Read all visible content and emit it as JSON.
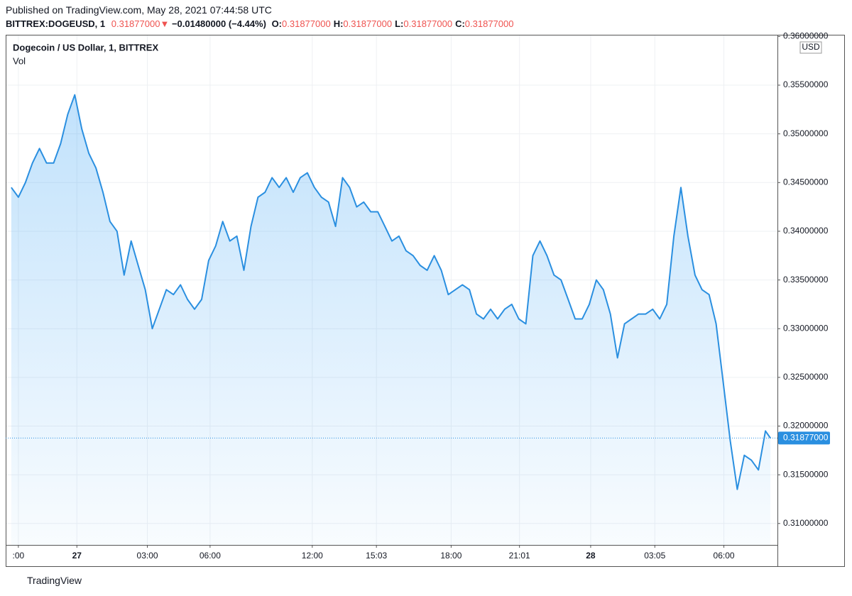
{
  "header": {
    "published": "Published on TradingView.com, May 28, 2021 07:44:58 UTC",
    "symbol": "BITTREX:DOGEUSD, 1",
    "last": "0.31877000",
    "arrow": "▼",
    "change": "−0.01480000 (−4.44%)",
    "ohlc": [
      {
        "label": "O:",
        "value": "0.31877000"
      },
      {
        "label": "H:",
        "value": "0.31877000"
      },
      {
        "label": "L:",
        "value": "0.31877000"
      },
      {
        "label": "C:",
        "value": "0.31877000"
      }
    ]
  },
  "footer": "TradingView",
  "chart_data": {
    "type": "area",
    "title": "Dogecoin / US Dollar, 1, BITTREX",
    "subtitle": "Vol",
    "currency": "USD",
    "color": "#2a8fe0",
    "x": [
      0,
      1,
      2,
      3,
      4,
      5,
      6,
      7,
      8,
      9,
      10,
      11,
      12,
      13,
      14,
      15,
      16,
      17,
      18,
      19,
      20,
      21,
      22,
      23,
      24,
      25,
      26,
      27,
      28,
      29,
      30,
      31,
      32,
      33,
      34,
      35,
      36,
      37,
      38,
      39,
      40,
      41,
      42,
      43,
      44,
      45,
      46,
      47,
      48,
      49,
      50,
      51,
      52,
      53,
      54,
      55,
      56,
      57,
      58,
      59,
      60,
      61,
      62,
      63,
      64,
      65,
      66,
      67,
      68,
      69,
      70,
      71,
      72,
      73,
      74,
      75,
      76,
      77,
      78,
      79,
      80,
      81,
      82,
      83,
      84,
      85,
      86,
      87,
      88,
      89,
      90,
      91,
      92,
      93,
      94,
      95,
      96,
      97,
      98,
      99,
      100,
      101,
      102,
      103,
      104,
      105,
      106,
      107,
      107.7
    ],
    "values": [
      0.3445,
      0.3435,
      0.345,
      0.347,
      0.3485,
      0.347,
      0.347,
      0.349,
      0.352,
      0.354,
      0.3505,
      0.348,
      0.3465,
      0.344,
      0.341,
      0.34,
      0.3355,
      0.339,
      0.3365,
      0.334,
      0.33,
      0.332,
      0.334,
      0.3335,
      0.3345,
      0.333,
      0.332,
      0.333,
      0.337,
      0.3385,
      0.341,
      0.339,
      0.3395,
      0.336,
      0.3405,
      0.3435,
      0.344,
      0.3455,
      0.3445,
      0.3455,
      0.344,
      0.3455,
      0.346,
      0.3445,
      0.3435,
      0.343,
      0.3405,
      0.3455,
      0.3445,
      0.3425,
      0.343,
      0.342,
      0.342,
      0.3405,
      0.339,
      0.3395,
      0.338,
      0.3375,
      0.3365,
      0.336,
      0.3375,
      0.336,
      0.3335,
      0.334,
      0.3345,
      0.334,
      0.3315,
      0.331,
      0.332,
      0.331,
      0.332,
      0.3325,
      0.331,
      0.3305,
      0.3375,
      0.339,
      0.3375,
      0.3355,
      0.335,
      0.333,
      0.331,
      0.331,
      0.3325,
      0.335,
      0.334,
      0.3315,
      0.327,
      0.3305,
      0.331,
      0.3315,
      0.3315,
      0.332,
      0.331,
      0.3325,
      0.3395,
      0.3445,
      0.3395,
      0.3355,
      0.334,
      0.3335,
      0.3305,
      0.3245,
      0.3185,
      0.3135,
      0.317,
      0.3165,
      0.3155,
      0.3195,
      0.31877
    ],
    "last_value": {
      "value": 0.31877,
      "label": "0.31877000"
    },
    "xlim": [
      -0.8,
      108.7
    ],
    "xticks": [
      {
        "value": 1,
        "label": ":00"
      },
      {
        "value": 9.3,
        "label": "27"
      },
      {
        "value": 19.3,
        "label": "03:00"
      },
      {
        "value": 28.2,
        "label": "06:00"
      },
      {
        "value": 42.7,
        "label": "12:00"
      },
      {
        "value": 51.8,
        "label": "15:03"
      },
      {
        "value": 62.4,
        "label": "18:00"
      },
      {
        "value": 72.1,
        "label": "21:01"
      },
      {
        "value": 82.2,
        "label": "28"
      },
      {
        "value": 91.3,
        "label": "03:05"
      },
      {
        "value": 101.1,
        "label": "06:00"
      }
    ],
    "ylim": [
      0.3078,
      0.3601
    ],
    "yticks": [
      {
        "value": 0.31,
        "label": "0.31000000"
      },
      {
        "value": 0.315,
        "label": "0.31500000"
      },
      {
        "value": 0.32,
        "label": "0.32000000"
      },
      {
        "value": 0.325,
        "label": "0.32500000"
      },
      {
        "value": 0.33,
        "label": "0.33000000"
      },
      {
        "value": 0.335,
        "label": "0.33500000"
      },
      {
        "value": 0.34,
        "label": "0.34000000"
      },
      {
        "value": 0.345,
        "label": "0.34500000"
      },
      {
        "value": 0.35,
        "label": "0.35000000"
      },
      {
        "value": 0.355,
        "label": "0.35500000"
      },
      {
        "value": 0.36,
        "label": "0.36000000"
      }
    ],
    "grid": true
  }
}
